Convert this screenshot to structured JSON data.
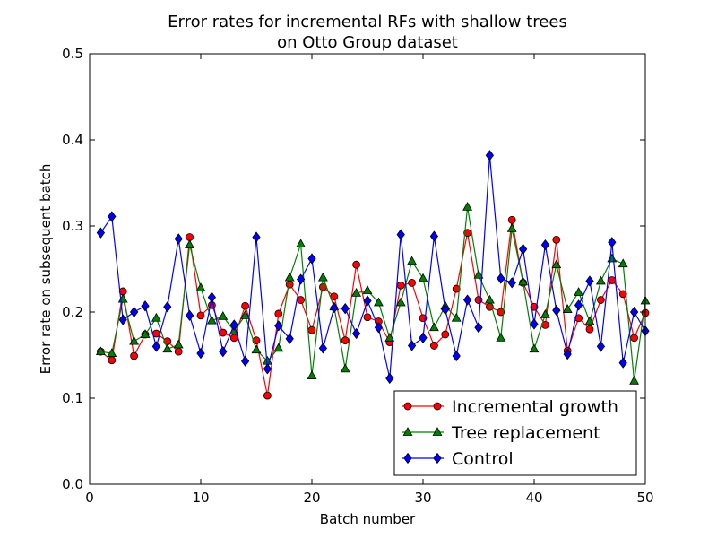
{
  "chart_data": {
    "type": "line",
    "title": "Error rates for incremental RFs with shallow trees",
    "subtitle": "on Otto Group dataset",
    "xlabel": "Batch number",
    "ylabel": "Error rate on subsequent batch",
    "xlim": [
      0,
      50
    ],
    "ylim": [
      0.0,
      0.5
    ],
    "xticks": [
      0,
      10,
      20,
      30,
      40,
      50
    ],
    "yticks": [
      0.0,
      0.1,
      0.2,
      0.3,
      0.4,
      0.5
    ],
    "xtick_labels": [
      "0",
      "10",
      "20",
      "30",
      "40",
      "50"
    ],
    "ytick_labels": [
      "0.0",
      "0.1",
      "0.2",
      "0.3",
      "0.4",
      "0.5"
    ],
    "grid": false,
    "legend_position": "bottom-right",
    "x": [
      1,
      2,
      3,
      4,
      5,
      6,
      7,
      8,
      9,
      10,
      11,
      12,
      13,
      14,
      15,
      16,
      17,
      18,
      19,
      20,
      21,
      22,
      23,
      24,
      25,
      26,
      27,
      28,
      29,
      30,
      31,
      32,
      33,
      34,
      35,
      36,
      37,
      38,
      39,
      40,
      41,
      42,
      43,
      44,
      45,
      46,
      47,
      48,
      49,
      50
    ],
    "series": [
      {
        "name": "Incremental growth",
        "color": "#ff0000",
        "line_color": "#ff0000",
        "marker": "circle",
        "values": [
          0.154,
          0.144,
          0.224,
          0.149,
          0.174,
          0.175,
          0.166,
          0.154,
          0.287,
          0.196,
          0.208,
          0.176,
          0.17,
          0.207,
          0.167,
          0.103,
          0.198,
          0.232,
          0.214,
          0.179,
          0.229,
          0.218,
          0.167,
          0.255,
          0.194,
          0.189,
          0.165,
          0.231,
          0.234,
          0.193,
          0.161,
          0.174,
          0.227,
          0.292,
          0.214,
          0.206,
          0.2,
          0.307,
          0.234,
          0.206,
          0.185,
          0.284,
          0.155,
          0.193,
          0.18,
          0.214,
          0.237,
          0.221,
          0.17,
          0.199
        ]
      },
      {
        "name": "Tree replacement",
        "color": "#008000",
        "line_color": "#008000",
        "marker": "triangle",
        "values": [
          0.154,
          0.152,
          0.215,
          0.166,
          0.174,
          0.193,
          0.157,
          0.162,
          0.278,
          0.228,
          0.19,
          0.195,
          0.178,
          0.196,
          0.156,
          0.143,
          0.158,
          0.24,
          0.279,
          0.126,
          0.24,
          0.206,
          0.134,
          0.222,
          0.225,
          0.211,
          0.17,
          0.211,
          0.259,
          0.239,
          0.182,
          0.207,
          0.193,
          0.322,
          0.243,
          0.214,
          0.17,
          0.297,
          0.235,
          0.157,
          0.197,
          0.255,
          0.203,
          0.223,
          0.189,
          0.236,
          0.262,
          0.256,
          0.12,
          0.213
        ]
      },
      {
        "name": "Control",
        "color": "#0000ff",
        "line_color": "#0000ff",
        "marker": "diamond",
        "values": [
          0.292,
          0.311,
          0.191,
          0.2,
          0.207,
          0.16,
          0.206,
          0.285,
          0.196,
          0.152,
          0.217,
          0.154,
          0.185,
          0.143,
          0.287,
          0.134,
          0.184,
          0.169,
          0.238,
          0.262,
          0.158,
          0.205,
          0.204,
          0.175,
          0.213,
          0.182,
          0.123,
          0.29,
          0.161,
          0.17,
          0.288,
          0.203,
          0.149,
          0.214,
          0.182,
          0.382,
          0.239,
          0.234,
          0.273,
          0.186,
          0.278,
          0.202,
          0.151,
          0.208,
          0.236,
          0.16,
          0.281,
          0.141,
          0.2,
          0.178
        ]
      }
    ]
  }
}
